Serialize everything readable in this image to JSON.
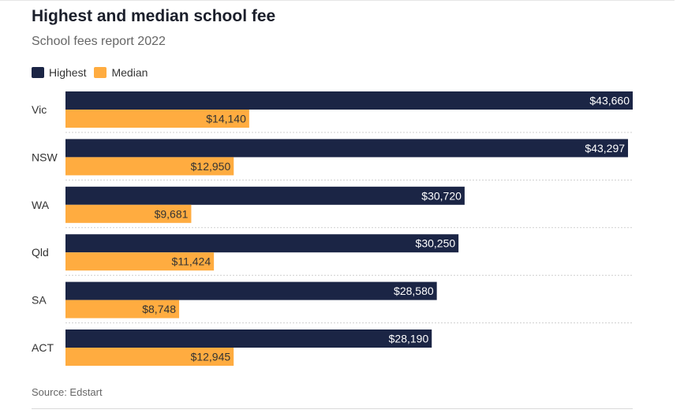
{
  "colors": {
    "highest": "#1b2545",
    "median": "#ffac40",
    "highest_label": "#ffffff",
    "median_label": "#333333"
  },
  "legend": {
    "highest": "Highest",
    "median": "Median"
  },
  "source": "Source: Edstart",
  "chart_data": {
    "type": "bar",
    "orientation": "horizontal",
    "title": "Highest and median school fee",
    "subtitle": "School fees report 2022",
    "categories": [
      "Vic",
      "NSW",
      "WA",
      "Qld",
      "SA",
      "ACT"
    ],
    "series": [
      {
        "name": "Highest",
        "values": [
          43660,
          43297,
          30720,
          30250,
          28580,
          28190
        ],
        "labels": [
          "$43,660",
          "$43,297",
          "$30,720",
          "$30,250",
          "$28,580",
          "$28,190"
        ]
      },
      {
        "name": "Median",
        "values": [
          14140,
          12950,
          9681,
          11424,
          8748,
          12945
        ],
        "labels": [
          "$14,140",
          "$12,950",
          "$9,681",
          "$11,424",
          "$8,748",
          "$12,945"
        ]
      }
    ],
    "xlim": [
      0,
      43660
    ],
    "legend_position": "top-left",
    "grid": false
  }
}
